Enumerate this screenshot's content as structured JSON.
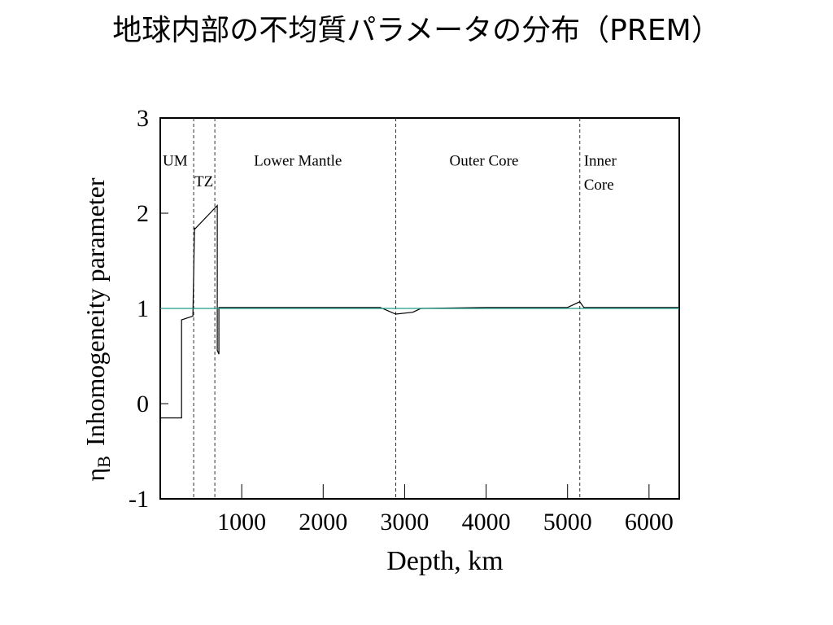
{
  "title": "地球内部の不均質パラメータの分布（PREM）",
  "chart_data": {
    "type": "line",
    "xlabel": "Depth, km",
    "ylabel_symbol": "η",
    "ylabel_subscript": "B",
    "ylabel_text": "Inhomogeneity parameter",
    "xlim": [
      0,
      6371
    ],
    "ylim": [
      -1,
      3
    ],
    "x_ticks": [
      1000,
      2000,
      3000,
      4000,
      5000,
      6000
    ],
    "y_ticks": [
      -1,
      0,
      1,
      2,
      3
    ],
    "x_tick_labels": [
      "1000",
      "2000",
      "3000",
      "4000",
      "5000",
      "6000"
    ],
    "y_tick_labels": [
      "-1",
      "0",
      "1",
      "2",
      "3"
    ],
    "boundaries": [
      410,
      670,
      2891,
      5150
    ],
    "regions": [
      {
        "label": "UM",
        "x": 30,
        "y": 2.5
      },
      {
        "label": "TZ",
        "x": 420,
        "y": 2.28
      },
      {
        "label": "Lower Mantle",
        "x": 1150,
        "y": 2.5
      },
      {
        "label": "Outer Core",
        "x": 3550,
        "y": 2.5
      },
      {
        "label": "Inner",
        "x": 5200,
        "y": 2.5
      },
      {
        "label": "Core",
        "x": 5200,
        "y": 2.25
      }
    ],
    "series": [
      {
        "color": "#000000",
        "x": [
          0,
          262,
          262,
          400,
          420,
          420,
          700,
          700,
          720,
          720,
          2700,
          2891,
          3100,
          3200,
          4000,
          5000,
          5150,
          5200,
          6371
        ],
        "y": [
          -0.15,
          -0.15,
          0.88,
          0.92,
          1.85,
          1.83,
          2.08,
          0.56,
          0.52,
          1.01,
          1.01,
          0.94,
          0.96,
          1.0,
          1.01,
          1.01,
          1.07,
          1.01,
          1.01
        ]
      },
      {
        "color": "#1f9c8c",
        "x": [
          0,
          6371
        ],
        "y": [
          1.0,
          1.0
        ]
      }
    ]
  }
}
